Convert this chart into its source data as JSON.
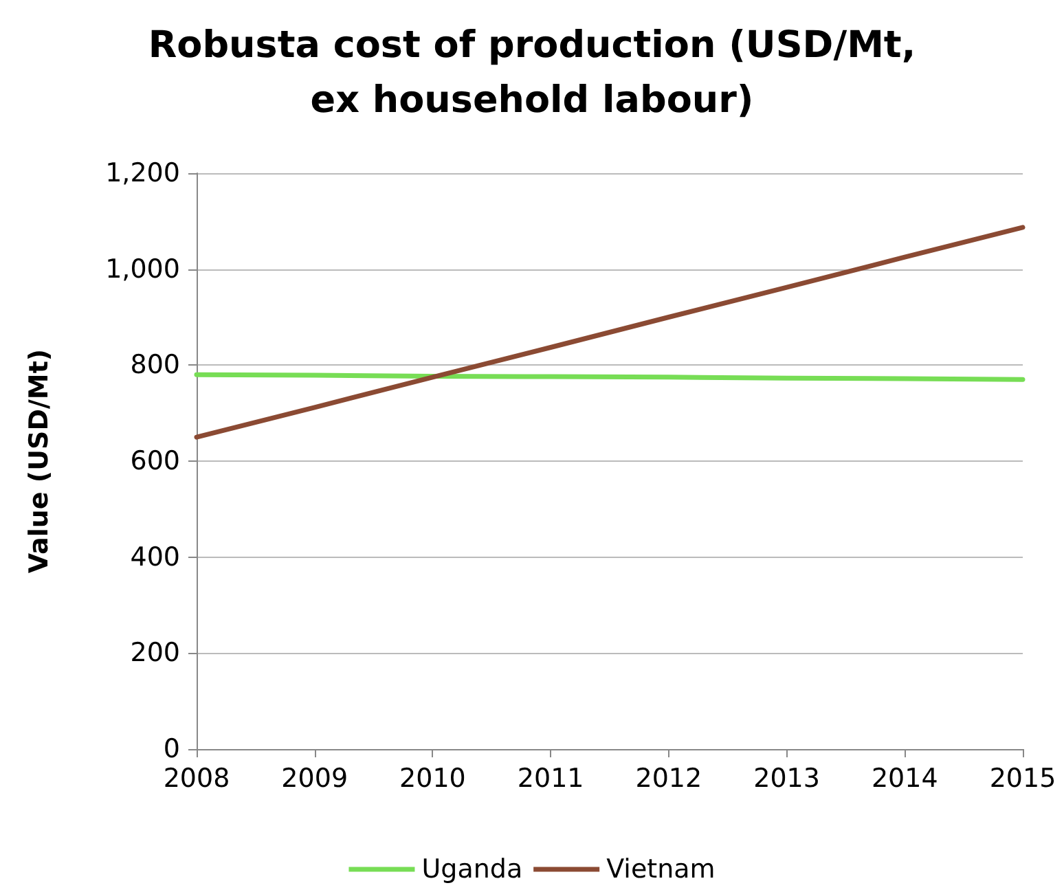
{
  "chart_data": {
    "type": "line",
    "title": "Robusta cost of production (USD/Mt,\nex household labour)",
    "ylabel": "Value (USD/Mt)",
    "x": [
      2008,
      2009,
      2010,
      2011,
      2012,
      2013,
      2014,
      2015
    ],
    "series": [
      {
        "name": "Uganda",
        "color": "#77dd55",
        "values": [
          780,
          779,
          777,
          776,
          775,
          773,
          772,
          770
        ]
      },
      {
        "name": "Vietnam",
        "color": "#8b4a33",
        "values": [
          650,
          712,
          775,
          837,
          900,
          962,
          1025,
          1087
        ]
      }
    ],
    "xlim": [
      2008,
      2015
    ],
    "xticks": [
      2008,
      2009,
      2010,
      2011,
      2012,
      2013,
      2014,
      2015
    ],
    "ylim": [
      0,
      1200
    ],
    "yticks": [
      {
        "value": 0,
        "label": "0"
      },
      {
        "value": 200,
        "label": "200"
      },
      {
        "value": 400,
        "label": "400"
      },
      {
        "value": 600,
        "label": "600"
      },
      {
        "value": 800,
        "label": "800"
      },
      {
        "value": 1000,
        "label": "1,000"
      },
      {
        "value": 1200,
        "label": "1,200"
      }
    ],
    "grid": "y",
    "legend": "bottom",
    "marker": "none",
    "line_style": "solid"
  }
}
